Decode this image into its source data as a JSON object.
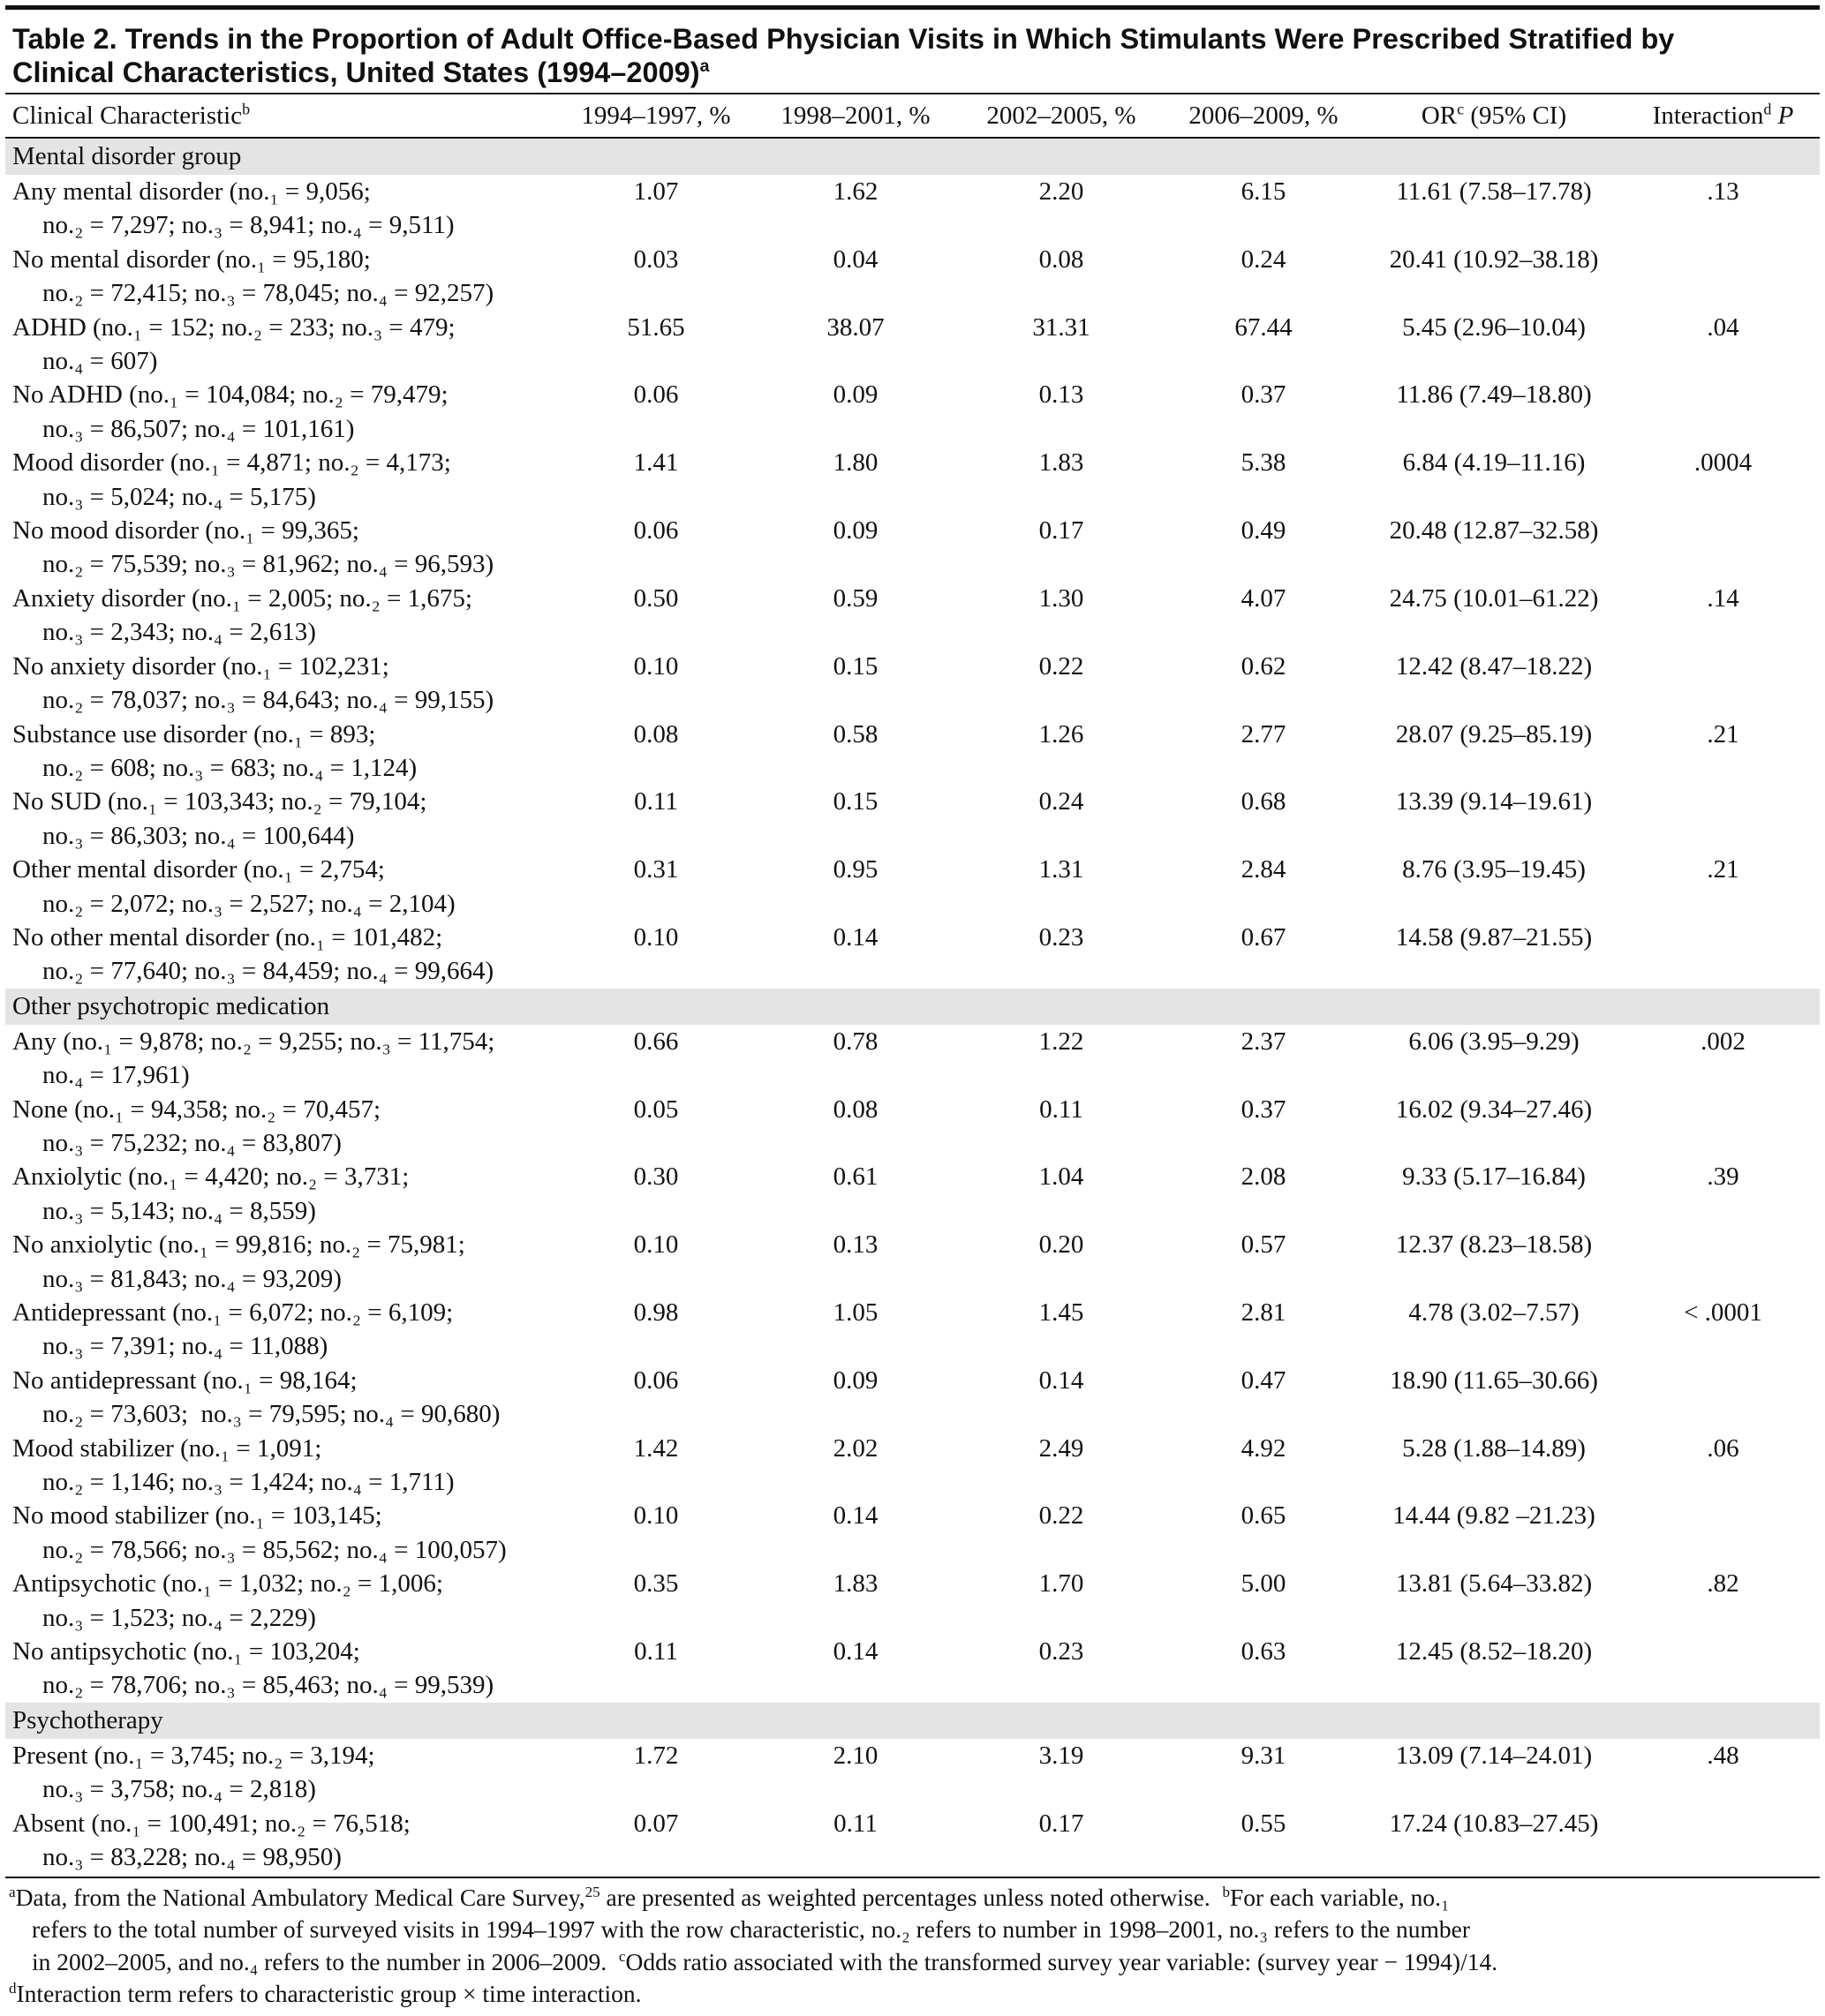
{
  "title": {
    "lines": [
      "Table 2. Trends in the Proportion of Adult Office-Based Physician Visits in Which Stimulants Were Prescribed Stratified by",
      "Clinical Characteristics, United States (1994–2009)"
    ],
    "note": "a"
  },
  "table": {
    "header": [
      {
        "text": "Clinical Characteristic",
        "sup": "b"
      },
      {
        "text": "1994–1997, %"
      },
      {
        "text": "1998–2001, %"
      },
      {
        "text": "2002–2005, %"
      },
      {
        "text": "2006–2009, %"
      },
      {
        "text": "OR",
        "sup": "c",
        "after": " (95% CI)"
      },
      {
        "text": "Interaction",
        "sup": "d",
        "after_italic": " P"
      }
    ],
    "sections": [
      {
        "title": "Mental disorder group",
        "rows": [
          {
            "label": [
              "Any mental disorder (no.₁ = 9,056;",
              "no.₂ = 7,297; no.₃ = 8,941; no.₄ = 9,511)"
            ],
            "cells": [
              "1.07",
              "1.62",
              "2.20",
              "6.15",
              "11.61 (7.58–17.78)",
              ".13"
            ]
          },
          {
            "label": [
              "No mental disorder (no.₁ = 95,180;",
              "no.₂ = 72,415; no.₃ = 78,045; no.₄ = 92,257)"
            ],
            "cells": [
              "0.03",
              "0.04",
              "0.08",
              "0.24",
              "20.41 (10.92–38.18)",
              null
            ]
          },
          {
            "label": [
              "ADHD (no.₁ = 152; no.₂ = 233; no.₃ = 479;",
              "no.₄ = 607)"
            ],
            "cells": [
              "51.65",
              "38.07",
              "31.31",
              "67.44",
              "5.45 (2.96–10.04)",
              ".04"
            ]
          },
          {
            "label": [
              "No ADHD (no.₁ = 104,084; no.₂ = 79,479;",
              "no.₃ = 86,507; no.₄ = 101,161)"
            ],
            "cells": [
              "0.06",
              "0.09",
              "0.13",
              "0.37",
              "11.86 (7.49–18.80)",
              null
            ]
          },
          {
            "label": [
              "Mood disorder (no.₁ = 4,871; no.₂ = 4,173;",
              "no.₃ = 5,024; no.₄ = 5,175)"
            ],
            "cells": [
              "1.41",
              "1.80",
              "1.83",
              "5.38",
              "6.84 (4.19–11.16)",
              ".0004"
            ]
          },
          {
            "label": [
              "No mood disorder (no.₁ = 99,365;",
              "no.₂ = 75,539; no.₃ = 81,962; no.₄ = 96,593)"
            ],
            "cells": [
              "0.06",
              "0.09",
              "0.17",
              "0.49",
              "20.48 (12.87–32.58)",
              null
            ]
          },
          {
            "label": [
              "Anxiety disorder (no.₁ = 2,005; no.₂ = 1,675;",
              "no.₃ = 2,343; no.₄ = 2,613)"
            ],
            "cells": [
              "0.50",
              "0.59",
              "1.30",
              "4.07",
              "24.75 (10.01–61.22)",
              ".14"
            ]
          },
          {
            "label": [
              "No anxiety disorder (no.₁ = 102,231;",
              "no.₂ = 78,037; no.₃ = 84,643; no.₄ = 99,155)"
            ],
            "cells": [
              "0.10",
              "0.15",
              "0.22",
              "0.62",
              "12.42 (8.47–18.22)",
              null
            ]
          },
          {
            "label": [
              "Substance use disorder (no.₁ = 893;",
              "no.₂ = 608; no.₃ = 683; no.₄ = 1,124)"
            ],
            "cells": [
              "0.08",
              "0.58",
              "1.26",
              "2.77",
              "28.07 (9.25–85.19)",
              ".21"
            ]
          },
          {
            "label": [
              "No SUD (no.₁ = 103,343; no.₂ = 79,104;",
              "no.₃ = 86,303; no.₄ = 100,644)"
            ],
            "cells": [
              "0.11",
              "0.15",
              "0.24",
              "0.68",
              "13.39 (9.14–19.61)",
              null
            ]
          },
          {
            "label": [
              "Other mental disorder (no.₁ = 2,754;",
              "no.₂ = 2,072; no.₃ = 2,527; no.₄ = 2,104)"
            ],
            "cells": [
              "0.31",
              "0.95",
              "1.31",
              "2.84",
              "8.76 (3.95–19.45)",
              ".21"
            ]
          },
          {
            "label": [
              "No other mental disorder (no.₁ = 101,482;",
              "no.₂ = 77,640; no.₃ = 84,459; no.₄ = 99,664)"
            ],
            "cells": [
              "0.10",
              "0.14",
              "0.23",
              "0.67",
              "14.58 (9.87–21.55)",
              null
            ]
          }
        ]
      },
      {
        "title": "Other psychotropic medication",
        "rows": [
          {
            "label": [
              "Any (no.₁ = 9,878; no.₂ = 9,255; no.₃ = 11,754;",
              "no.₄ = 17,961)"
            ],
            "cells": [
              "0.66",
              "0.78",
              "1.22",
              "2.37",
              "6.06 (3.95–9.29)",
              ".002"
            ]
          },
          {
            "label": [
              "None (no.₁ = 94,358; no.₂ = 70,457;",
              "no.₃ = 75,232; no.₄ = 83,807)"
            ],
            "cells": [
              "0.05",
              "0.08",
              "0.11",
              "0.37",
              "16.02 (9.34–27.46)",
              null
            ]
          },
          {
            "label": [
              "Anxiolytic (no.₁ = 4,420; no.₂ = 3,731;",
              "no.₃ = 5,143; no.₄ = 8,559)"
            ],
            "cells": [
              "0.30",
              "0.61",
              "1.04",
              "2.08",
              "9.33 (5.17–16.84)",
              ".39"
            ]
          },
          {
            "label": [
              "No anxiolytic (no.₁ = 99,816; no.₂ = 75,981;",
              "no.₃ = 81,843; no.₄ = 93,209)"
            ],
            "cells": [
              "0.10",
              "0.13",
              "0.20",
              "0.57",
              "12.37 (8.23–18.58)",
              null
            ]
          },
          {
            "label": [
              "Antidepressant (no.₁ = 6,072; no.₂ = 6,109;",
              "no.₃ = 7,391; no.₄ = 11,088)"
            ],
            "cells": [
              "0.98",
              "1.05",
              "1.45",
              "2.81",
              "4.78 (3.02–7.57)",
              "< .0001"
            ]
          },
          {
            "label": [
              "No antidepressant (no.₁ = 98,164;",
              "no.₂ = 73,603;  no.₃ = 79,595; no.₄ = 90,680)"
            ],
            "cells": [
              "0.06",
              "0.09",
              "0.14",
              "0.47",
              "18.90 (11.65–30.66)",
              null
            ]
          },
          {
            "label": [
              "Mood stabilizer (no.₁ = 1,091;",
              "no.₂ = 1,146; no.₃ = 1,424; no.₄ = 1,711)"
            ],
            "cells": [
              "1.42",
              "2.02",
              "2.49",
              "4.92",
              "5.28 (1.88–14.89)",
              ".06"
            ]
          },
          {
            "label": [
              "No mood stabilizer (no.₁ = 103,145;",
              "no.₂ = 78,566; no.₃ = 85,562; no.₄ = 100,057)"
            ],
            "cells": [
              "0.10",
              "0.14",
              "0.22",
              "0.65",
              "14.44 (9.82 –21.23)",
              null
            ]
          },
          {
            "label": [
              "Antipsychotic (no.₁ = 1,032; no.₂ = 1,006;",
              "no.₃ = 1,523; no.₄ = 2,229)"
            ],
            "cells": [
              "0.35",
              "1.83",
              "1.70",
              "5.00",
              "13.81 (5.64–33.82)",
              ".82"
            ]
          },
          {
            "label": [
              "No antipsychotic (no.₁ = 103,204;",
              "no.₂ = 78,706; no.₃ = 85,463; no.₄ = 99,539)"
            ],
            "cells": [
              "0.11",
              "0.14",
              "0.23",
              "0.63",
              "12.45 (8.52–18.20)",
              null
            ]
          }
        ]
      },
      {
        "title": "Psychotherapy",
        "rows": [
          {
            "label": [
              "Present (no.₁ = 3,745; no.₂ = 3,194;",
              "no.₃ = 3,758; no.₄ = 2,818)"
            ],
            "cells": [
              "1.72",
              "2.10",
              "3.19",
              "9.31",
              "13.09 (7.14–24.01)",
              ".48"
            ]
          },
          {
            "label": [
              "Absent (no.₁ = 100,491; no.₂ = 76,518;",
              "no.₃ = 83,228; no.₄ = 98,950)"
            ],
            "cells": [
              "0.07",
              "0.11",
              "0.17",
              "0.55",
              "17.24 (10.83–27.45)",
              null
            ]
          }
        ]
      }
    ]
  },
  "footnotes": [
    [
      {
        "sup": "a"
      },
      {
        "text": "Data, from the National Ambulatory Medical Care Survey,"
      },
      {
        "sup": "25"
      },
      {
        "text": " are presented as weighted percentages unless noted otherwise.  "
      },
      {
        "sup": "b"
      },
      {
        "text": "For each variable, no.₁"
      }
    ],
    [
      {
        "text": "refers to the total number of surveyed visits in 1994–1997 with the row characteristic, no.₂ refers to number in 1998–2001, no.₃ refers to the number"
      }
    ],
    [
      {
        "text": "in 2002–2005, and no.₄ refers to the number in 2006–2009.  "
      },
      {
        "sup": "c"
      },
      {
        "text": "Odds ratio associated with the transformed survey year variable: (survey year − 1994)/14."
      }
    ],
    [
      {
        "sup": "d"
      },
      {
        "text": "Interaction term refers to characteristic group × time interaction."
      }
    ]
  ]
}
